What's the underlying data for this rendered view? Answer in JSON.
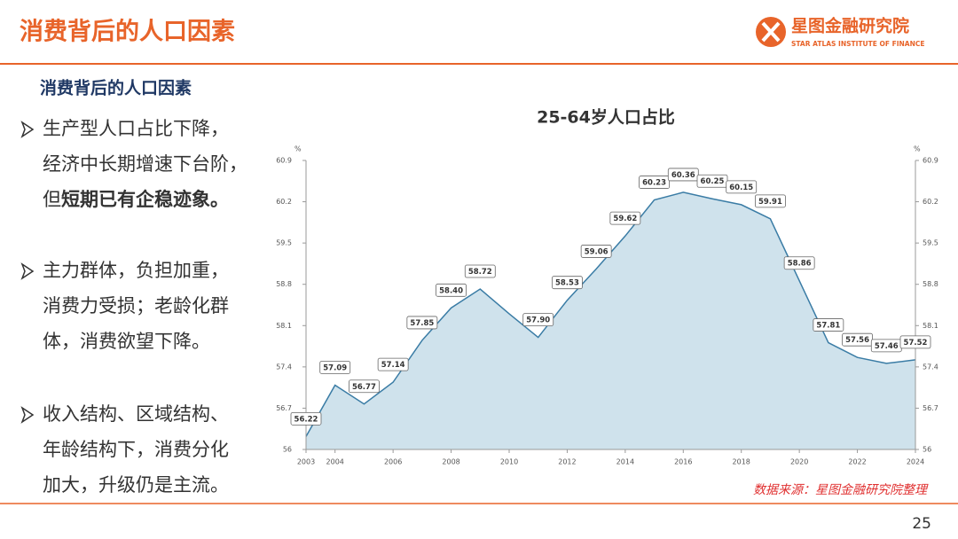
{
  "header": {
    "title": "消费背后的人口因素",
    "logo_name": "星图金融研究院",
    "logo_subtitle": "STAR ATLAS INSTITUTE OF FINANCE"
  },
  "subtitle": "消费背后的人口因素",
  "bullets": [
    {
      "lines": [
        [
          {
            "text": "生产型人口占比下降，",
            "bold": false
          }
        ],
        [
          {
            "text": "经济中长期增速下台阶，",
            "bold": false
          }
        ],
        [
          {
            "text": "但",
            "bold": false
          },
          {
            "text": "短期已有企稳迹象。",
            "bold": true
          }
        ]
      ]
    },
    {
      "lines": [
        [
          {
            "text": "主力群体，负担加重，",
            "bold": false
          }
        ],
        [
          {
            "text": "消费力受损；老龄化群",
            "bold": false
          }
        ],
        [
          {
            "text": "体，消费欲望下降。",
            "bold": false
          }
        ]
      ]
    },
    {
      "lines": [
        [
          {
            "text": "收入结构、区域结构、",
            "bold": false
          }
        ],
        [
          {
            "text": "年龄结构下，消费分化",
            "bold": false
          }
        ],
        [
          {
            "text": "加大，升级仍是主流。",
            "bold": false
          }
        ]
      ]
    }
  ],
  "chart_data": {
    "type": "area",
    "title": "25-64岁人口占比",
    "x": [
      2003,
      2004,
      2005,
      2006,
      2007,
      2008,
      2009,
      2010,
      2011,
      2012,
      2013,
      2014,
      2015,
      2016,
      2017,
      2018,
      2019,
      2020,
      2021,
      2022,
      2023,
      2024
    ],
    "values": [
      56.22,
      57.09,
      56.77,
      57.14,
      57.85,
      58.4,
      58.72,
      58.3,
      57.9,
      58.53,
      59.06,
      59.62,
      60.23,
      60.36,
      60.25,
      60.15,
      59.91,
      58.86,
      57.81,
      57.56,
      57.46,
      57.52
    ],
    "value_labels": [
      "56.22",
      "57.09",
      "56.77",
      "57.14",
      "57.85",
      "58.40",
      "58.72",
      null,
      "57.90",
      "58.53",
      "59.06",
      "59.62",
      "60.23",
      "60.36",
      "60.25",
      "60.15",
      "59.91",
      "58.86",
      "57.81",
      "57.56",
      "57.46",
      "57.52"
    ],
    "color": "#3a7ca5",
    "fill_color": "#cfe2ec",
    "ylabel": "%",
    "y2label": "%",
    "xlim": [
      2003,
      2024
    ],
    "xticks": [
      2003,
      2004,
      2006,
      2008,
      2010,
      2012,
      2014,
      2016,
      2018,
      2020,
      2022,
      2024
    ],
    "ylim": [
      56,
      60.9
    ],
    "yticks": [
      56,
      56.7,
      57.4,
      58.1,
      58.8,
      59.5,
      60.2,
      60.9
    ],
    "y2lim": [
      56,
      60.9
    ],
    "y2ticks": [
      56,
      56.7,
      57.4,
      58.1,
      58.8,
      59.5,
      60.2,
      60.9
    ]
  },
  "source": "数据来源：星图金融研究院整理",
  "page_number": "25"
}
